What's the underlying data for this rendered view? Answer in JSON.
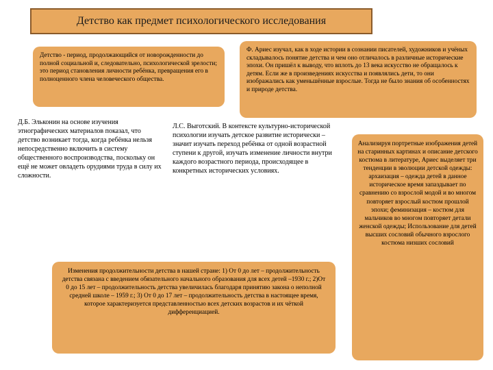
{
  "colors": {
    "panel_bg": "#e8a85e",
    "title_border": "#8a5a2a",
    "page_bg": "#ffffff",
    "text": "#1a1a1a"
  },
  "title": "Детство как предмет психологического исследования",
  "definition": "Детство - период, продолжающийся от новорожденности до полной социальной и, следовательно, психологической зрелости; это период становления личности ребёнка, превращения его в полноценного члена человеческого общества.",
  "aries": "Ф. Ариес изучал, как в ходе истории в сознании писателей, художников и учёных складывалось понятие детства и чем оно отличалось в различные исторические эпохи. Он пришёл к выводу, что вплоть до 13 века искусство не обращалось к детям. Если же в произведениях искусства и появлялись дети, то они изображались как уменьшённые взрослые. Тогда не было знания об особенностях и природе детства.",
  "elkonin": "Д.Б. Эльконин на основе изучения этнографических материалов показал, что детство возникает тогда, когда ребёнка нельзя непосредственно включить в систему общественного воспроизводства, поскольку он ещё не может овладеть орудиями труда в силу их сложности.",
  "vygotsky": "Л.С. Выготский. В контексте культурно-исторической психологии изучать детское развитие исторически – значит изучать переход ребёнка от одной возрастной ступени к другой, изучать изменение личности внутри каждого возрастного периода, происходящее в конкретных исторических условиях.",
  "portrait": "Анализируя портретные изображения детей на старинных картинах и описание детского костюма в литературе, Ариес выделяет три тенденции в эволюции детской одежды: архаизация – одежда детей в данное историческое время запаздывает по сравнению со взрослой модой и во многом повторяет взрослый костюм прошлой эпохи; феминизация – костюм для мальчиков во многом повторяет детали женской одежды; Использование для детей высших сословий обычного взрослого костюма низших сословий",
  "changes": "Изменения продолжительности детства в нашей стране: 1) От 0 до лет – продолжительность детства связана с введением обязательного начального образования для всех детей –1930 г.; 2)От 0 до 15 лет – продолжительность детства увеличилась благодаря принятию закона о неполной средней школе – 1959 г.; 3) От 0 до 17 лет – продолжительность детства в настоящее время, которое характеризуется представленностью всех детских возрастов и их чёткой дифференциацией."
}
